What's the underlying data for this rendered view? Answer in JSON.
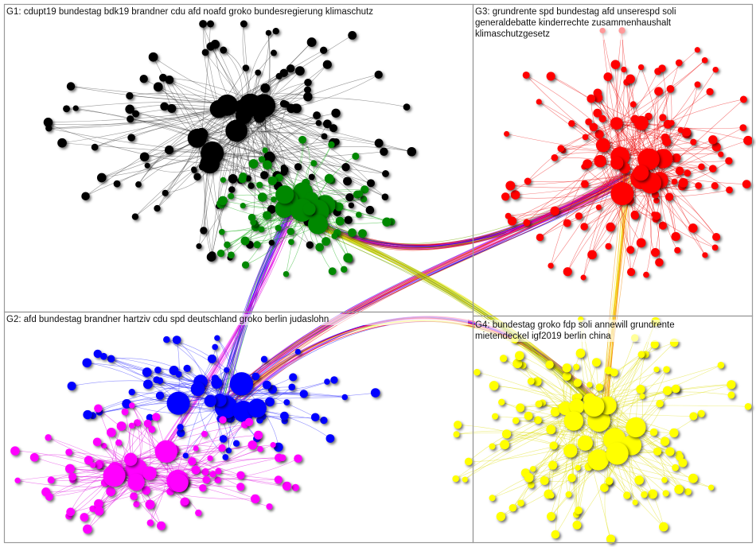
{
  "groups": [
    {
      "label": "G1: cdupt19 bundestag bdk19 brandner cdu afd noafd groko bundesregierung klimaschutz"
    },
    {
      "label": "G2: afd bundestag brandner hartziv cdu spd deutschland groko berlin judaslohn"
    },
    {
      "label": "G3: grundrente spd bundestag afd unserespd soli generaldebatte kinderrechte zusammenhaushalt klimaschutzgesetz"
    },
    {
      "label": "G4: bundestag groko fdp soli annewill grundrente mietendeckel igf2019 berlin china"
    }
  ]
}
